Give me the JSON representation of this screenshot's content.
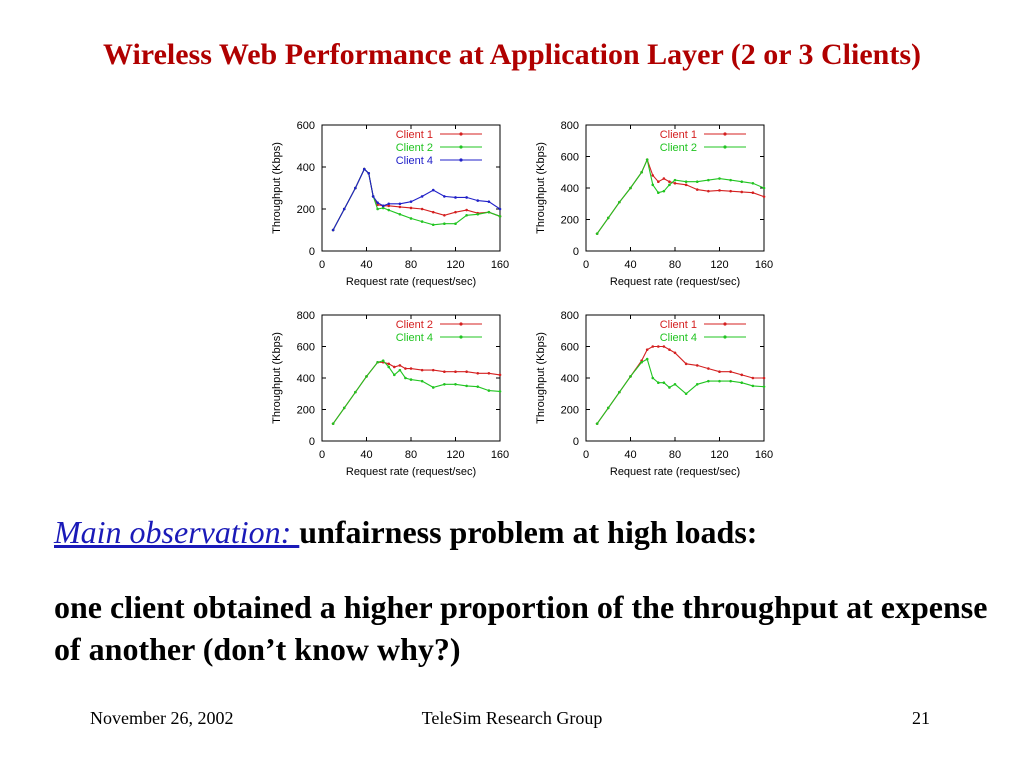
{
  "slide": {
    "title": "Wireless Web Performance at Application Layer (2 or 3 Clients)",
    "observation_label": "Main observation: ",
    "observation_text": "unfairness problem at high loads:",
    "observation_detail": "one client obtained a higher proportion of the throughput at expense of another  (don’t know why?)",
    "footer_date": "November 26, 2002",
    "footer_group": "TeleSim Research Group",
    "footer_page": "21"
  },
  "chart_data": [
    {
      "type": "line",
      "xlabel": "Request rate (request/sec)",
      "ylabel": "Throughput (Kbps)",
      "xlim": [
        0,
        160
      ],
      "ylim": [
        0,
        600
      ],
      "xticks": [
        0,
        40,
        80,
        120,
        160
      ],
      "yticks": [
        0,
        200,
        400,
        600
      ],
      "legend_position": "top-right",
      "series": [
        {
          "name": "Client 1",
          "color": "#d42020",
          "x": [
            10,
            20,
            30,
            38,
            42,
            46,
            50,
            55,
            60,
            70,
            80,
            90,
            100,
            110,
            120,
            130,
            140,
            150,
            160
          ],
          "y": [
            100,
            200,
            300,
            390,
            370,
            260,
            220,
            215,
            215,
            210,
            205,
            200,
            185,
            170,
            185,
            195,
            180,
            185,
            165
          ]
        },
        {
          "name": "Client 2",
          "color": "#21c421",
          "x": [
            10,
            20,
            30,
            38,
            42,
            46,
            50,
            55,
            60,
            70,
            80,
            90,
            100,
            110,
            120,
            130,
            140,
            150,
            160
          ],
          "y": [
            100,
            200,
            300,
            390,
            370,
            260,
            200,
            205,
            195,
            175,
            155,
            140,
            125,
            130,
            130,
            170,
            175,
            185,
            165
          ]
        },
        {
          "name": "Client 4",
          "color": "#2020c8",
          "x": [
            10,
            20,
            30,
            38,
            42,
            46,
            50,
            55,
            60,
            70,
            80,
            90,
            100,
            110,
            120,
            130,
            140,
            150,
            160
          ],
          "y": [
            100,
            200,
            300,
            390,
            370,
            260,
            230,
            215,
            225,
            225,
            235,
            260,
            290,
            260,
            255,
            255,
            240,
            235,
            200
          ]
        }
      ]
    },
    {
      "type": "line",
      "xlabel": "Request rate (request/sec)",
      "ylabel": "Throughput (Kbps)",
      "xlim": [
        0,
        160
      ],
      "ylim": [
        0,
        800
      ],
      "xticks": [
        0,
        40,
        80,
        120,
        160
      ],
      "yticks": [
        0,
        200,
        400,
        600,
        800
      ],
      "legend_position": "top-right",
      "series": [
        {
          "name": "Client 1",
          "color": "#d42020",
          "x": [
            10,
            20,
            30,
            40,
            50,
            55,
            60,
            65,
            70,
            75,
            80,
            90,
            100,
            110,
            120,
            130,
            140,
            150,
            160
          ],
          "y": [
            110,
            210,
            310,
            400,
            500,
            580,
            480,
            440,
            460,
            440,
            430,
            420,
            390,
            380,
            385,
            380,
            375,
            370,
            345
          ]
        },
        {
          "name": "Client 2",
          "color": "#21c421",
          "x": [
            10,
            20,
            30,
            40,
            50,
            55,
            60,
            65,
            70,
            75,
            80,
            90,
            100,
            110,
            120,
            130,
            140,
            150,
            160
          ],
          "y": [
            110,
            210,
            310,
            400,
            500,
            580,
            420,
            370,
            380,
            420,
            450,
            440,
            440,
            450,
            460,
            450,
            440,
            430,
            400
          ]
        }
      ]
    },
    {
      "type": "line",
      "xlabel": "Request rate (request/sec)",
      "ylabel": "Throughput (Kbps)",
      "xlim": [
        0,
        160
      ],
      "ylim": [
        0,
        800
      ],
      "xticks": [
        0,
        40,
        80,
        120,
        160
      ],
      "yticks": [
        0,
        200,
        400,
        600,
        800
      ],
      "legend_position": "top-right",
      "series": [
        {
          "name": "Client 2",
          "color": "#d42020",
          "x": [
            10,
            20,
            30,
            40,
            50,
            55,
            60,
            65,
            70,
            75,
            80,
            90,
            100,
            110,
            120,
            130,
            140,
            150,
            160
          ],
          "y": [
            110,
            210,
            310,
            410,
            500,
            500,
            490,
            470,
            480,
            460,
            460,
            450,
            450,
            440,
            440,
            440,
            430,
            430,
            420
          ]
        },
        {
          "name": "Client 4",
          "color": "#21c421",
          "x": [
            10,
            20,
            30,
            40,
            50,
            55,
            60,
            65,
            70,
            75,
            80,
            90,
            100,
            110,
            120,
            130,
            140,
            150,
            160
          ],
          "y": [
            110,
            210,
            310,
            410,
            500,
            510,
            470,
            420,
            450,
            400,
            390,
            380,
            340,
            360,
            360,
            350,
            345,
            320,
            315
          ]
        }
      ]
    },
    {
      "type": "line",
      "xlabel": "Request rate (request/sec)",
      "ylabel": "Throughput (Kbps)",
      "xlim": [
        0,
        160
      ],
      "ylim": [
        0,
        800
      ],
      "xticks": [
        0,
        40,
        80,
        120,
        160
      ],
      "yticks": [
        0,
        200,
        400,
        600,
        800
      ],
      "legend_position": "top-right",
      "series": [
        {
          "name": "Client 1",
          "color": "#d42020",
          "x": [
            10,
            20,
            30,
            40,
            50,
            55,
            60,
            65,
            70,
            75,
            80,
            90,
            100,
            110,
            120,
            130,
            140,
            150,
            160
          ],
          "y": [
            110,
            210,
            310,
            410,
            510,
            580,
            600,
            600,
            600,
            580,
            560,
            490,
            480,
            460,
            440,
            440,
            420,
            400,
            400
          ]
        },
        {
          "name": "Client 4",
          "color": "#21c421",
          "x": [
            10,
            20,
            30,
            40,
            50,
            55,
            60,
            65,
            70,
            75,
            80,
            90,
            100,
            110,
            120,
            130,
            140,
            150,
            160
          ],
          "y": [
            110,
            210,
            310,
            410,
            500,
            520,
            400,
            370,
            370,
            340,
            360,
            300,
            360,
            380,
            380,
            380,
            370,
            350,
            345
          ]
        }
      ]
    }
  ]
}
